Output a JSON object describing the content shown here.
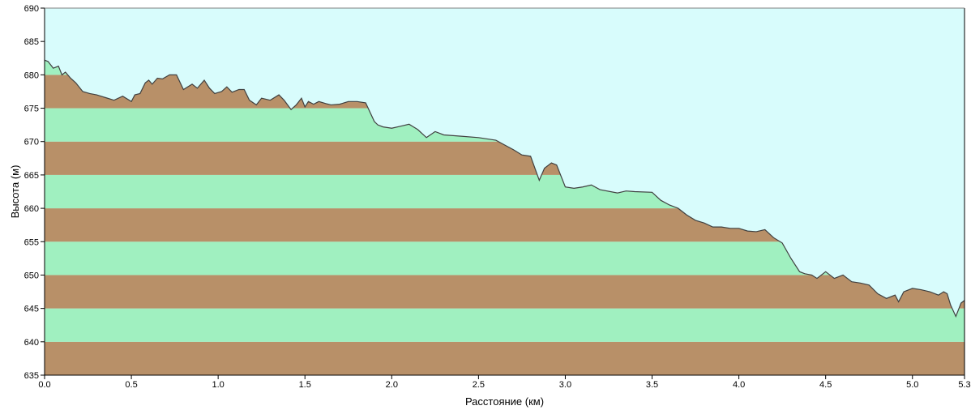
{
  "chart_data": {
    "type": "area",
    "title": "",
    "xlabel": "Расстояние  (км)",
    "ylabel": "Высота (м)",
    "xlim": [
      0,
      5.3
    ],
    "ylim": [
      635,
      690
    ],
    "x_ticks": [
      "0.0",
      "0.5",
      "1.0",
      "1.5",
      "2.0",
      "2.5",
      "3.0",
      "3.5",
      "4.0",
      "4.5",
      "5.0",
      "5.3"
    ],
    "x_tick_values": [
      0,
      0.5,
      1.0,
      1.5,
      2.0,
      2.5,
      3.0,
      3.5,
      4.0,
      4.5,
      5.0,
      5.3
    ],
    "y_ticks": [
      "635",
      "640",
      "645",
      "650",
      "655",
      "660",
      "665",
      "670",
      "675",
      "680",
      "685",
      "690"
    ],
    "y_tick_values": [
      635,
      640,
      645,
      650,
      655,
      660,
      665,
      670,
      675,
      680,
      685,
      690
    ],
    "band_step": 5,
    "grid": false,
    "legend": "none",
    "colors": {
      "sky": "#d8fcfc",
      "band_brown": "#b89068",
      "band_green": "#a0f0c0",
      "profile_line": "#404040",
      "axis": "#000000"
    },
    "series": [
      {
        "x": [
          0.0,
          0.02,
          0.05,
          0.08,
          0.1,
          0.12,
          0.15,
          0.18,
          0.22,
          0.26,
          0.3,
          0.35,
          0.4,
          0.45,
          0.5,
          0.52,
          0.55,
          0.58,
          0.6,
          0.62,
          0.65,
          0.68,
          0.72,
          0.76,
          0.8,
          0.85,
          0.88,
          0.92,
          0.95,
          0.98,
          1.02,
          1.05,
          1.08,
          1.12,
          1.15,
          1.18,
          1.22,
          1.25,
          1.3,
          1.35,
          1.38,
          1.42,
          1.45,
          1.48,
          1.5,
          1.52,
          1.55,
          1.58,
          1.62,
          1.65,
          1.7,
          1.75,
          1.8,
          1.85,
          1.9,
          1.92,
          1.95,
          2.0,
          2.05,
          2.1,
          2.15,
          2.2,
          2.25,
          2.3,
          2.4,
          2.5,
          2.55,
          2.6,
          2.65,
          2.7,
          2.75,
          2.8,
          2.85,
          2.88,
          2.92,
          2.95,
          3.0,
          3.05,
          3.1,
          3.15,
          3.2,
          3.3,
          3.35,
          3.4,
          3.5,
          3.55,
          3.6,
          3.65,
          3.7,
          3.75,
          3.8,
          3.85,
          3.9,
          3.95,
          4.0,
          4.05,
          4.1,
          4.15,
          4.2,
          4.25,
          4.3,
          4.35,
          4.38,
          4.42,
          4.45,
          4.5,
          4.55,
          4.6,
          4.65,
          4.7,
          4.75,
          4.8,
          4.85,
          4.9,
          4.92,
          4.95,
          5.0,
          5.05,
          5.1,
          5.15,
          5.18,
          5.2,
          5.22,
          5.25,
          5.28,
          5.3
        ],
        "values": [
          682.2,
          682.0,
          681.0,
          681.3,
          680.0,
          680.4,
          679.5,
          678.8,
          677.5,
          677.2,
          677.0,
          676.6,
          676.2,
          676.8,
          676.0,
          677.0,
          677.2,
          678.8,
          679.2,
          678.6,
          679.5,
          679.4,
          680.0,
          680.0,
          677.8,
          678.6,
          678.0,
          679.2,
          678.0,
          677.2,
          677.5,
          678.2,
          677.4,
          677.8,
          677.8,
          676.2,
          675.5,
          676.5,
          676.2,
          677.0,
          676.2,
          674.8,
          675.5,
          676.5,
          675.2,
          676.0,
          675.6,
          676.0,
          675.7,
          675.5,
          675.6,
          676.0,
          676.0,
          675.8,
          673.0,
          672.5,
          672.2,
          672.0,
          672.3,
          672.6,
          671.8,
          670.6,
          671.5,
          671.0,
          670.8,
          670.6,
          670.4,
          670.2,
          669.5,
          668.8,
          668.0,
          667.8,
          664.2,
          666.0,
          666.8,
          666.5,
          663.2,
          663.0,
          663.2,
          663.5,
          662.8,
          662.3,
          662.6,
          662.5,
          662.4,
          661.2,
          660.5,
          660.0,
          659.0,
          658.2,
          657.8,
          657.2,
          657.2,
          657.0,
          657.0,
          656.6,
          656.5,
          656.8,
          655.6,
          654.8,
          652.5,
          650.5,
          650.2,
          650.0,
          649.5,
          650.5,
          649.5,
          650.0,
          649.0,
          648.8,
          648.5,
          647.2,
          646.5,
          647.0,
          646.0,
          647.5,
          648.0,
          647.8,
          647.5,
          647.0,
          647.5,
          647.2,
          645.5,
          643.8,
          645.8,
          646.2
        ]
      }
    ]
  }
}
